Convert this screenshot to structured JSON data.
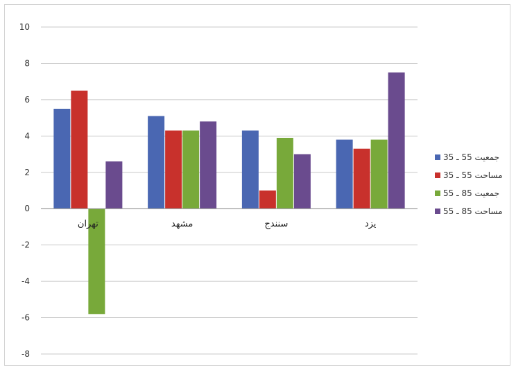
{
  "chart_data": {
    "type": "bar",
    "categories": [
      "تهران",
      "مشهد",
      "سنندج",
      "یزد"
    ],
    "series": [
      {
        "name": "جمعیت 55 ـ 35",
        "color": "#4a67b2",
        "values": [
          5.5,
          5.1,
          4.3,
          3.8
        ]
      },
      {
        "name": "مساحت 55 ـ 35",
        "color": "#c8312c",
        "values": [
          6.5,
          4.3,
          1.0,
          3.3
        ]
      },
      {
        "name": "جمعیت 85 ـ 55",
        "color": "#78a93a",
        "values": [
          -5.8,
          4.3,
          3.9,
          3.8
        ]
      },
      {
        "name": "مساحت 85 ـ 55",
        "color": "#6a4b8e",
        "values": [
          2.6,
          4.8,
          3.0,
          7.5
        ]
      }
    ],
    "yticks": [
      10,
      8,
      6,
      4,
      2,
      0,
      -2,
      -4,
      -6,
      -8
    ],
    "ylim": [
      -8,
      10
    ],
    "grid": true,
    "legend_position": "right",
    "title": "",
    "xlabel": "",
    "ylabel": ""
  }
}
